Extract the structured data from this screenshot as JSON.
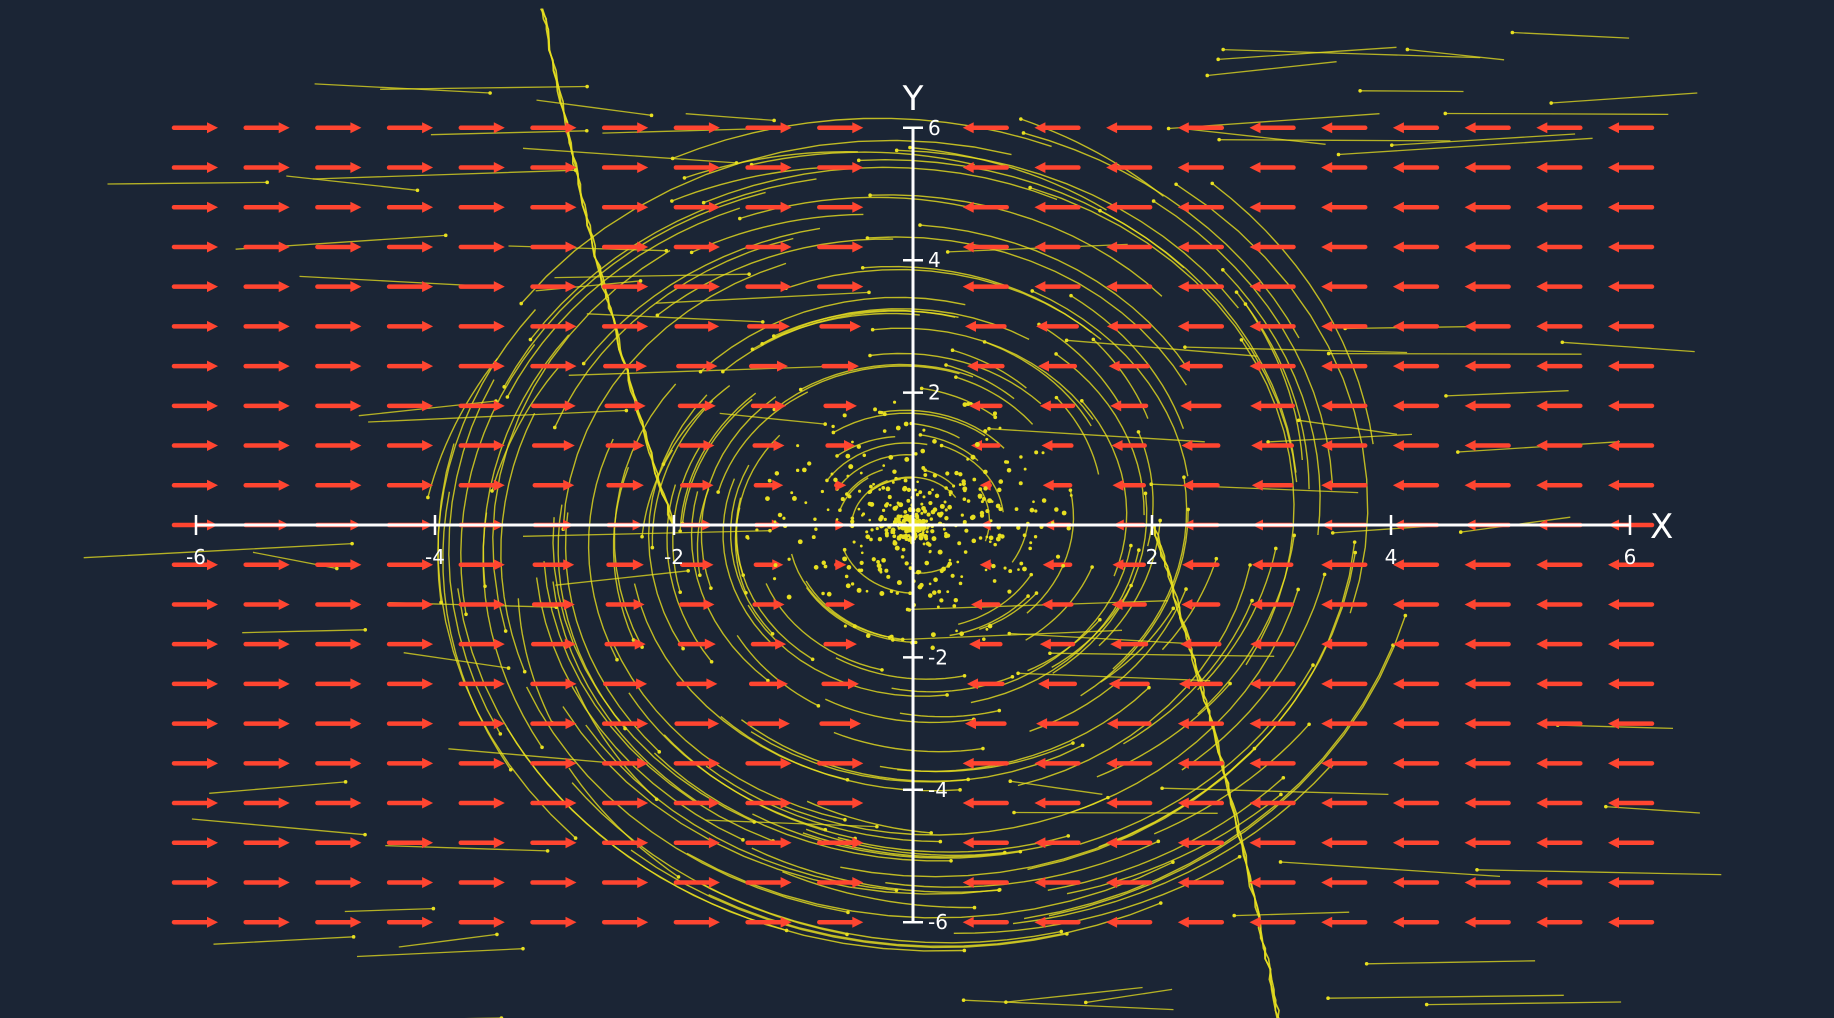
{
  "figure": {
    "axes": {
      "x_label": "X",
      "y_label": "Y",
      "x_range": [
        -6,
        6
      ],
      "y_range": [
        -6,
        6
      ],
      "x_ticks": [
        {
          "value": -6,
          "label": "-6"
        },
        {
          "value": -4,
          "label": "-4"
        },
        {
          "value": -2,
          "label": "-2"
        },
        {
          "value": 2,
          "label": "2"
        },
        {
          "value": 4,
          "label": "4"
        },
        {
          "value": 6,
          "label": "6"
        }
      ],
      "y_ticks": [
        {
          "value": 6,
          "label": "6"
        },
        {
          "value": 4,
          "label": "4"
        },
        {
          "value": 2,
          "label": "2"
        },
        {
          "value": -2,
          "label": "-2"
        },
        {
          "value": -4,
          "label": "-4"
        },
        {
          "value": -6,
          "label": "-6"
        }
      ]
    },
    "vector_field": {
      "direction_rule": "arrows point right where x < 0, left where x > 0",
      "grid_columns": 21,
      "grid_rows": 21
    },
    "colors": {
      "background": "#1b2535",
      "arrow": "#ff4530",
      "trail": "#e8e020",
      "axis": "#ffffff"
    }
  }
}
